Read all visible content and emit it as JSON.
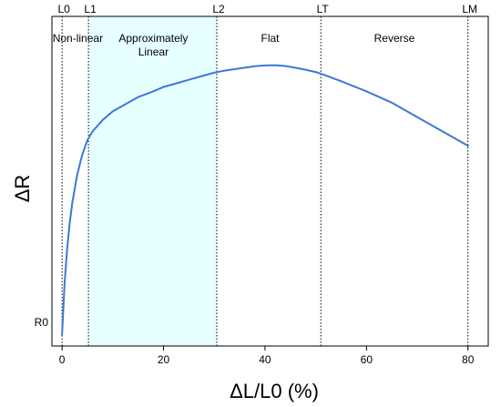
{
  "chart_data": {
    "type": "line",
    "title": "",
    "xlabel": "ΔL/L0 (%)",
    "ylabel": "ΔR",
    "xlim": [
      -2,
      84
    ],
    "ylim": [
      0,
      1.0
    ],
    "x_ticks": [
      0,
      20,
      40,
      60,
      80
    ],
    "y_tick_labels": [
      {
        "label": "R0",
        "y": 0.0
      }
    ],
    "grid": false,
    "series": [
      {
        "color": "#3c78d8",
        "x": [
          0,
          0.5,
          1,
          1.5,
          2,
          3,
          4,
          5,
          6,
          8,
          10,
          12,
          15,
          18,
          20,
          22,
          25,
          28,
          30,
          32,
          35,
          38,
          40,
          42,
          44,
          46,
          48,
          50,
          52,
          55,
          60,
          65,
          70,
          75,
          80
        ],
        "y": [
          0.0,
          0.18,
          0.3,
          0.39,
          0.46,
          0.56,
          0.63,
          0.68,
          0.71,
          0.75,
          0.78,
          0.8,
          0.83,
          0.85,
          0.865,
          0.875,
          0.89,
          0.905,
          0.915,
          0.922,
          0.93,
          0.937,
          0.94,
          0.941,
          0.938,
          0.932,
          0.925,
          0.917,
          0.905,
          0.885,
          0.85,
          0.81,
          0.76,
          0.71,
          0.66
        ]
      }
    ],
    "shaded_region": {
      "x0": 5.2,
      "x1": 30.5,
      "color": "#e6ffff"
    },
    "vlines": [
      {
        "label": "L0",
        "x": 0
      },
      {
        "label": "L1",
        "x": 5.2
      },
      {
        "label": "L2",
        "x": 30.5
      },
      {
        "label": "LT",
        "x": 51
      },
      {
        "label": "LM",
        "x": 80
      }
    ],
    "regions": [
      {
        "lines": [
          "Non-linear"
        ],
        "x": 3.1
      },
      {
        "lines": [
          "Approximately",
          "Linear"
        ],
        "x": 18
      },
      {
        "lines": [
          "Flat"
        ],
        "x": 41
      },
      {
        "lines": [
          "Reverse"
        ],
        "x": 65.5
      }
    ]
  }
}
